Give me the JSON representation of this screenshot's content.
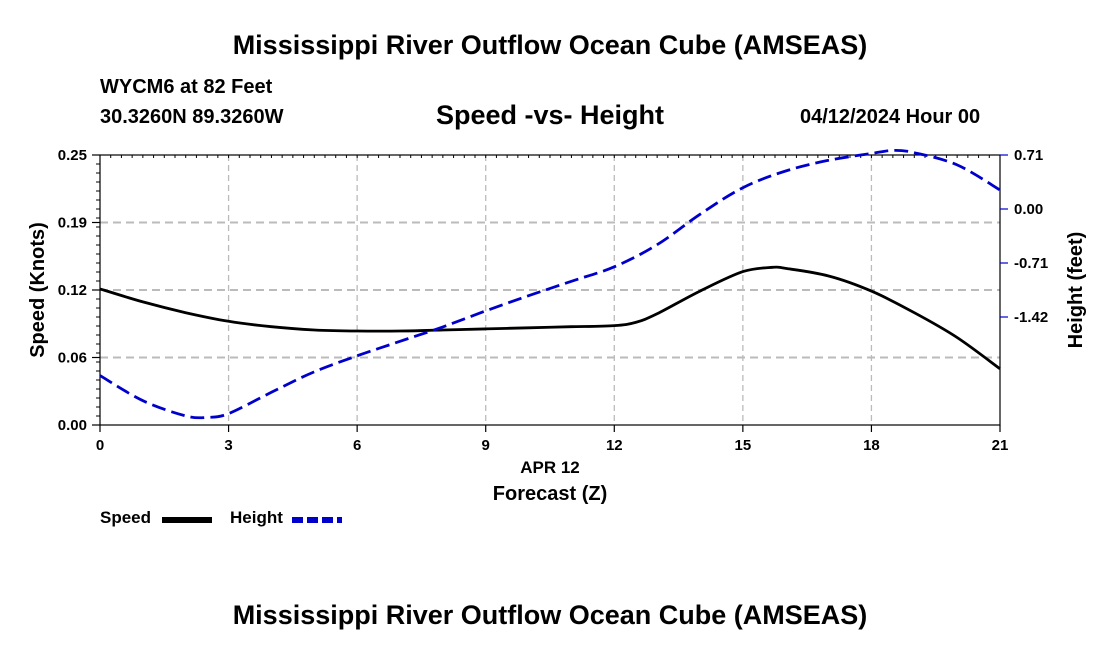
{
  "header": {
    "title": "Mississippi River Outflow Ocean Cube (AMSEAS)",
    "station": "WYCM6 at 82 Feet",
    "coordinates": "30.3260N  89.3260W",
    "subtitle": "Speed -vs- Height",
    "datetime": "04/12/2024 Hour 00"
  },
  "footer": {
    "title": "Mississippi River Outflow Ocean Cube (AMSEAS)"
  },
  "colors": {
    "speed": "#000000",
    "height": "#0000cc",
    "grid": "#bbbbbb"
  },
  "chart_data": {
    "type": "line",
    "title": "Speed -vs- Height",
    "xlabel": "Forecast (Z)",
    "xlabel_date": "APR 12",
    "ylabel": "Speed (Knots)",
    "y2label": "Height (feet)",
    "xlim": [
      0,
      21
    ],
    "x_ticks": [
      0,
      3,
      6,
      9,
      12,
      15,
      18,
      21
    ],
    "x_tick_labels": [
      "0",
      "3",
      "6",
      "9",
      "12",
      "15",
      "18",
      "21"
    ],
    "ylim": [
      0.0,
      0.25
    ],
    "y_ticks": [
      0.0,
      0.0625,
      0.125,
      0.1875,
      0.25
    ],
    "y_tick_labels": [
      "0.00",
      "0.06",
      "0.12",
      "0.19",
      "0.25"
    ],
    "y2lim": [
      -2.84,
      0.71
    ],
    "y2_ticks": [
      -1.42,
      -0.71,
      0.0,
      0.71
    ],
    "y2_tick_labels": [
      "-1.42",
      "-0.71",
      "0.00",
      "0.71"
    ],
    "grid": true,
    "legend": "bottom-left",
    "series": [
      {
        "name": "Speed",
        "axis": "left",
        "style": "solid",
        "x": [
          0,
          1,
          2,
          3,
          4,
          5,
          6,
          7,
          8,
          9,
          10,
          11,
          12,
          12.5,
          13,
          14,
          15,
          15.7,
          16,
          17,
          18,
          19,
          20,
          21
        ],
        "values": [
          0.126,
          0.114,
          0.104,
          0.096,
          0.091,
          0.088,
          0.087,
          0.087,
          0.088,
          0.089,
          0.09,
          0.091,
          0.092,
          0.095,
          0.103,
          0.124,
          0.142,
          0.146,
          0.145,
          0.138,
          0.124,
          0.104,
          0.081,
          0.052
        ]
      },
      {
        "name": "Height",
        "axis": "right",
        "style": "dashed",
        "x": [
          0,
          1,
          2,
          2.5,
          3,
          4,
          5,
          6,
          7,
          8,
          9,
          10,
          11,
          12,
          13,
          14,
          15,
          16,
          17,
          18,
          18.5,
          19,
          20,
          21
        ],
        "values": [
          -2.19,
          -2.52,
          -2.72,
          -2.74,
          -2.69,
          -2.41,
          -2.14,
          -1.93,
          -1.74,
          -1.55,
          -1.34,
          -1.14,
          -0.95,
          -0.76,
          -0.47,
          -0.07,
          0.28,
          0.5,
          0.64,
          0.73,
          0.77,
          0.74,
          0.58,
          0.25
        ]
      }
    ]
  }
}
